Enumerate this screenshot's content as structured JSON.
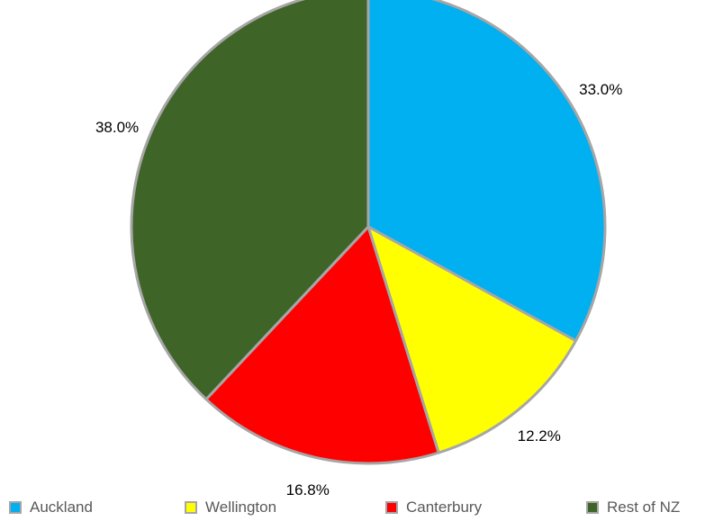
{
  "chart_data": {
    "type": "pie",
    "categories": [
      "Auckland",
      "Wellington",
      "Canterbury",
      "Rest of NZ"
    ],
    "values": [
      33.0,
      12.2,
      16.8,
      38.0
    ],
    "data_labels": [
      "33.0%",
      "12.2%",
      "16.8%",
      "38.0%"
    ],
    "colors": [
      "#00b0f0",
      "#ffff00",
      "#ff0000",
      "#3f6428"
    ],
    "border_color": "#a6a6a6",
    "start_angle": "12 o'clock, clockwise",
    "legend": "bottom"
  }
}
